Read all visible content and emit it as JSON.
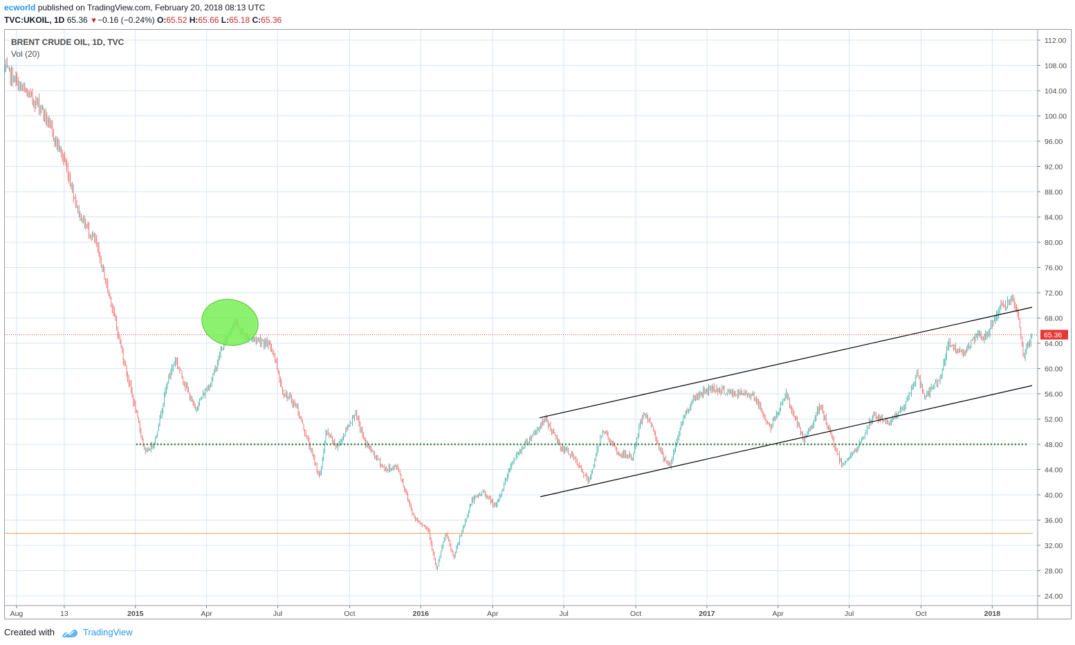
{
  "header": {
    "author": "ecworld",
    "published_text": "published on TradingView.com, February 20, 2018 08:13 UTC",
    "symbol": "TVC:UKOIL, 1D",
    "last": "65.36",
    "change": "−0.16 (−0.24%)",
    "o_label": "O:",
    "o_value": "65.52",
    "h_label": "H:",
    "h_value": "65.66",
    "l_label": "L:",
    "l_value": "65.18",
    "c_label": "C:",
    "c_value": "65.36"
  },
  "legend": {
    "series_title": "BRENT CRUDE OIL, 1D, TVC",
    "indicator": "Vol (20)"
  },
  "footer": {
    "created_with": "Created with",
    "brand": "TradingView"
  },
  "colors": {
    "up": "#26a69a",
    "down": "#ef5350",
    "grid": "#d6e4f2",
    "price_line": "#e53935",
    "support_dotted": "#2e7d32",
    "low_line": "#e0a060",
    "highlight": "#77ee55",
    "brand": "#2196f3"
  },
  "chart_data": {
    "type": "candlestick",
    "title": "BRENT CRUDE OIL, 1D, TVC",
    "y_ticks": [
      "112.00",
      "108.00",
      "104.00",
      "100.00",
      "96.00",
      "92.00",
      "88.00",
      "84.00",
      "80.00",
      "76.00",
      "72.00",
      "68.00",
      "64.00",
      "60.00",
      "56.00",
      "52.00",
      "48.00",
      "44.00",
      "40.00",
      "36.00",
      "32.00",
      "28.00",
      "24.00"
    ],
    "ylim": [
      22.8,
      114.2
    ],
    "x_ticks": [
      {
        "label": "Aug",
        "bold": false
      },
      {
        "label": "13",
        "bold": false
      },
      {
        "label": "2015",
        "bold": true
      },
      {
        "label": "Apr",
        "bold": false
      },
      {
        "label": "Jul",
        "bold": false
      },
      {
        "label": "Oct",
        "bold": false
      },
      {
        "label": "2016",
        "bold": true
      },
      {
        "label": "Apr",
        "bold": false
      },
      {
        "label": "Jul",
        "bold": false
      },
      {
        "label": "Oct",
        "bold": false
      },
      {
        "label": "2017",
        "bold": true
      },
      {
        "label": "Apr",
        "bold": false
      },
      {
        "label": "Jul",
        "bold": false
      },
      {
        "label": "Oct",
        "bold": false
      },
      {
        "label": "2018",
        "bold": true
      }
    ],
    "x_range": [
      "2014-07-17",
      "2018-02-20"
    ],
    "price_path": [
      [
        "2014-07-17",
        107.5
      ],
      [
        "2014-08-10",
        104.0
      ],
      [
        "2014-09-01",
        101.5
      ],
      [
        "2014-10-01",
        93.0
      ],
      [
        "2014-10-20",
        84.5
      ],
      [
        "2014-11-10",
        80.0
      ],
      [
        "2014-12-01",
        70.0
      ],
      [
        "2014-12-15",
        62.0
      ],
      [
        "2015-01-13",
        46.5
      ],
      [
        "2015-01-25",
        48.5
      ],
      [
        "2015-02-10",
        58.0
      ],
      [
        "2015-02-20",
        61.5
      ],
      [
        "2015-03-17",
        53.5
      ],
      [
        "2015-04-07",
        58.0
      ],
      [
        "2015-04-20",
        63.0
      ],
      [
        "2015-05-06",
        67.5
      ],
      [
        "2015-05-20",
        65.0
      ],
      [
        "2015-06-10",
        64.5
      ],
      [
        "2015-06-25",
        63.0
      ],
      [
        "2015-07-07",
        56.5
      ],
      [
        "2015-07-25",
        54.0
      ],
      [
        "2015-08-24",
        42.7
      ],
      [
        "2015-09-01",
        50.0
      ],
      [
        "2015-09-15",
        47.5
      ],
      [
        "2015-10-08",
        53.0
      ],
      [
        "2015-10-20",
        48.5
      ],
      [
        "2015-11-15",
        44.0
      ],
      [
        "2015-12-01",
        44.5
      ],
      [
        "2015-12-22",
        36.5
      ],
      [
        "2016-01-10",
        34.5
      ],
      [
        "2016-01-20",
        28.0
      ],
      [
        "2016-02-01",
        34.0
      ],
      [
        "2016-02-11",
        30.0
      ],
      [
        "2016-03-05",
        39.0
      ],
      [
        "2016-03-20",
        40.5
      ],
      [
        "2016-04-05",
        38.0
      ],
      [
        "2016-04-25",
        45.0
      ],
      [
        "2016-05-15",
        48.5
      ],
      [
        "2016-06-08",
        52.0
      ],
      [
        "2016-06-27",
        47.5
      ],
      [
        "2016-07-10",
        46.5
      ],
      [
        "2016-08-02",
        42.0
      ],
      [
        "2016-08-20",
        50.5
      ],
      [
        "2016-09-08",
        46.5
      ],
      [
        "2016-09-27",
        46.0
      ],
      [
        "2016-10-10",
        53.0
      ],
      [
        "2016-10-20",
        51.5
      ],
      [
        "2016-11-03",
        46.5
      ],
      [
        "2016-11-14",
        44.5
      ],
      [
        "2016-11-30",
        52.0
      ],
      [
        "2016-12-15",
        55.5
      ],
      [
        "2017-01-06",
        57.0
      ],
      [
        "2017-02-01",
        56.0
      ],
      [
        "2017-02-28",
        56.0
      ],
      [
        "2017-03-22",
        50.5
      ],
      [
        "2017-04-11",
        56.0
      ],
      [
        "2017-05-04",
        48.5
      ],
      [
        "2017-05-25",
        54.0
      ],
      [
        "2017-06-21",
        44.8
      ],
      [
        "2017-07-10",
        47.0
      ],
      [
        "2017-08-01",
        52.5
      ],
      [
        "2017-08-21",
        51.5
      ],
      [
        "2017-09-10",
        54.0
      ],
      [
        "2017-09-26",
        59.0
      ],
      [
        "2017-10-06",
        55.5
      ],
      [
        "2017-10-25",
        58.5
      ],
      [
        "2017-11-06",
        64.0
      ],
      [
        "2017-11-20",
        62.5
      ],
      [
        "2017-12-01",
        63.5
      ],
      [
        "2017-12-11",
        65.0
      ],
      [
        "2017-12-22",
        65.0
      ],
      [
        "2018-01-12",
        70.0
      ],
      [
        "2018-01-25",
        70.5
      ],
      [
        "2018-02-01",
        69.0
      ],
      [
        "2018-02-09",
        62.0
      ],
      [
        "2018-02-20",
        65.36
      ]
    ],
    "last_price": 65.36,
    "annotations": [
      {
        "type": "trendline",
        "from": [
          "2016-05-31",
          52.2
        ],
        "to": [
          "2018-02-20",
          69.7
        ]
      },
      {
        "type": "trendline",
        "from": [
          "2016-06-01",
          39.7
        ],
        "to": [
          "2018-02-20",
          57.3
        ]
      },
      {
        "type": "dotted_hline",
        "price": 48.0,
        "from": "2015-01-01",
        "to": "2018-02-15"
      },
      {
        "type": "hline",
        "price": 33.9,
        "from": "2014-07-17",
        "to": "2018-02-20"
      },
      {
        "type": "price_line",
        "price": 65.36
      },
      {
        "type": "ellipse",
        "center": [
          "2015-05-01",
          67.3
        ]
      }
    ]
  }
}
